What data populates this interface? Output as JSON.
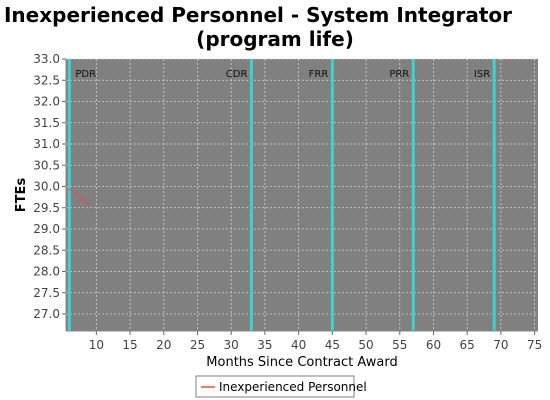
{
  "chart_data": {
    "type": "line",
    "title_lines": [
      "Inexperienced Personnel - System Integrator",
      "(program life)"
    ],
    "xlabel": "Months Since Contract Award",
    "ylabel": "FTEs",
    "xlim": [
      5.5,
      75.5
    ],
    "ylim": [
      26.6,
      33.0
    ],
    "x_ticks": [
      10,
      15,
      20,
      25,
      30,
      35,
      40,
      45,
      50,
      55,
      60,
      65,
      70,
      75
    ],
    "y_ticks": [
      27.0,
      27.5,
      28.0,
      28.5,
      29.0,
      29.5,
      30.0,
      30.5,
      31.0,
      31.5,
      32.0,
      32.5,
      33.0
    ],
    "grid": true,
    "milestones": [
      {
        "label": "PDR",
        "x": 6
      },
      {
        "label": "CDR",
        "x": 33
      },
      {
        "label": "FRR",
        "x": 45
      },
      {
        "label": "PRR",
        "x": 57
      },
      {
        "label": "ISR",
        "x": 69
      }
    ],
    "series": [
      {
        "name": "Inexperienced Personnel",
        "color": "#e05050",
        "x": [
          6,
          7,
          8,
          9
        ],
        "y": [
          29.95,
          29.82,
          29.7,
          29.58
        ]
      }
    ],
    "legend_position": "bottom-center",
    "colors": {
      "plot_bg": "#808080",
      "grid": "#d0d0d0",
      "milestone": "#40d0d0"
    }
  }
}
